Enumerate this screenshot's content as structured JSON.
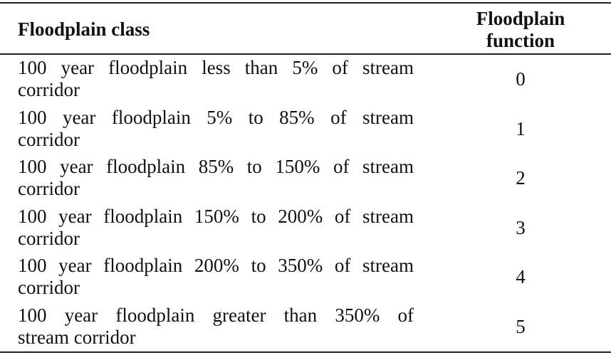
{
  "table": {
    "headers": {
      "class_label": "Floodplain class",
      "function_label_line1": "Floodplain",
      "function_label_line2": "function"
    },
    "rows": [
      {
        "class_line1": "100 year floodplain less than 5% of stream",
        "class_line2": "corridor",
        "function": "0"
      },
      {
        "class_line1": "100 year floodplain 5% to 85% of stream",
        "class_line2": "corridor",
        "function": "1"
      },
      {
        "class_line1": "100 year floodplain 85% to 150% of stream",
        "class_line2": "corridor",
        "function": "2"
      },
      {
        "class_line1": "100 year floodplain 150% to 200% of stream",
        "class_line2": "corridor",
        "function": "3"
      },
      {
        "class_line1": "100 year floodplain 200% to 350% of stream",
        "class_line2": "corridor",
        "function": "4"
      },
      {
        "class_line1": "100 year floodplain greater than 350% of",
        "class_line2": "stream corridor",
        "function": "5"
      }
    ]
  }
}
